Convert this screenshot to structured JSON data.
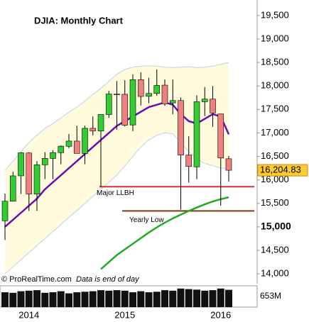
{
  "chart_data": {
    "type": "candlestick",
    "title": "DJIA: Monthly Chart",
    "watermark": "© ProRealTime.com",
    "note": "Data is end of day",
    "categories": [
      null,
      null,
      null,
      "2014",
      null,
      null,
      null,
      null,
      null,
      null,
      null,
      null,
      null,
      null,
      null,
      "2015",
      null,
      null,
      null,
      null,
      null,
      null,
      null,
      null,
      null,
      null,
      null,
      "2016",
      null
    ],
    "open": [
      15130,
      15545,
      16086,
      16572,
      15698,
      16321,
      16457,
      16580,
      16715,
      16826,
      16561,
      17098,
      17041,
      17391,
      17827,
      17823,
      17169,
      18134,
      17779,
      17840,
      18017,
      17638,
      17690,
      16529,
      16278,
      17664,
      17720,
      17405,
      16450
    ],
    "high": [
      15709,
      16174,
      16588,
      16588,
      16398,
      16589,
      16632,
      16736,
      16978,
      17152,
      17154,
      17350,
      17395,
      17895,
      18103,
      18121,
      18244,
      18289,
      18175,
      18351,
      18138,
      18137,
      17753,
      16933,
      17799,
      17978,
      17997,
      17406,
      16510
    ],
    "low": [
      14720,
      15545,
      15703,
      15340,
      15340,
      16016,
      16015,
      16334,
      16675,
      16563,
      16334,
      16945,
      15855,
      17319,
      17068,
      17136,
      17038,
      17585,
      17634,
      17791,
      17576,
      17399,
      15370,
      15942,
      16014,
      17359,
      17129,
      15451,
      15960
    ],
    "close": [
      15546,
      16086,
      16577,
      15699,
      16322,
      16458,
      16581,
      16717,
      16827,
      16563,
      17098,
      17043,
      17391,
      17828,
      17823,
      17165,
      18133,
      17776,
      17841,
      18011,
      17620,
      17690,
      16528,
      16285,
      17664,
      17720,
      17425,
      16466,
      16204.83
    ],
    "up_color": "#33cc33",
    "down_color": "#f08080",
    "band_upper": [
      16200,
      16400,
      16600,
      16800,
      16950,
      17100,
      17200,
      17320,
      17440,
      17550,
      17680,
      17820,
      17950,
      18100,
      18250,
      18350,
      18400,
      18420,
      18430,
      18420,
      18400,
      18390,
      18400,
      18410,
      18390,
      18400,
      18420,
      18460,
      18500
    ],
    "band_lower": [
      14000,
      14150,
      14300,
      14450,
      14600,
      14750,
      14900,
      15050,
      15200,
      15350,
      15500,
      15650,
      15800,
      15950,
      16100,
      16300,
      16500,
      16700,
      16850,
      16950,
      17000,
      16980,
      16800,
      16600,
      16450,
      16350,
      16300,
      16250,
      16250
    ],
    "band_color": "#fffbdc",
    "band_line_color": "#b8d4e8",
    "ma_short": [
      15000,
      15150,
      15300,
      15450,
      15600,
      15800,
      15950,
      16100,
      16250,
      16400,
      16550,
      16700,
      16850,
      17000,
      17150,
      17250,
      17350,
      17450,
      17550,
      17600,
      17650,
      17600,
      17400,
      17250,
      17200,
      17300,
      17400,
      17350,
      16970
    ],
    "ma_short_color": "#6a0dad",
    "ma_long": [
      null,
      null,
      null,
      null,
      null,
      null,
      null,
      null,
      null,
      null,
      null,
      null,
      14100,
      14250,
      14400,
      14520,
      14640,
      14760,
      14880,
      14990,
      15090,
      15180,
      15260,
      15340,
      15410,
      15480,
      15540,
      15590,
      15630
    ],
    "ma_long_color": "#22aa22",
    "levels": [
      {
        "label": "Major LLBH",
        "value": 15855,
        "color": "#cc3333"
      },
      {
        "label": "Yearly Low",
        "value": 15340,
        "color": "#7a3b10"
      }
    ],
    "last_price": {
      "value": 16204.83,
      "label": "16,204.83"
    },
    "ylim": [
      13790,
      19830
    ],
    "yticks": [
      {
        "value": 14000,
        "label": "14,000"
      },
      {
        "value": 14500,
        "label": "14,500"
      },
      {
        "value": 15000,
        "label": "15,000"
      },
      {
        "value": 15500,
        "label": "15,500"
      },
      {
        "value": 16000,
        "label": "16,000"
      },
      {
        "value": 16500,
        "label": "16,500"
      },
      {
        "value": 17000,
        "label": "17,000"
      },
      {
        "value": 17500,
        "label": "17,500"
      },
      {
        "value": 18000,
        "label": "18,000"
      },
      {
        "value": 18500,
        "label": "18,500"
      },
      {
        "value": 19000,
        "label": "19,000"
      },
      {
        "value": 19500,
        "label": "19,500"
      }
    ],
    "volume": [
      560,
      540,
      600,
      620,
      640,
      540,
      560,
      600,
      520,
      560,
      580,
      600,
      640,
      620,
      640,
      620,
      560,
      600,
      560,
      580,
      640,
      620,
      700,
      680,
      660,
      620,
      640,
      700,
      653
    ],
    "volume_label": "653M",
    "volume_ylim": [
      0,
      750
    ]
  }
}
